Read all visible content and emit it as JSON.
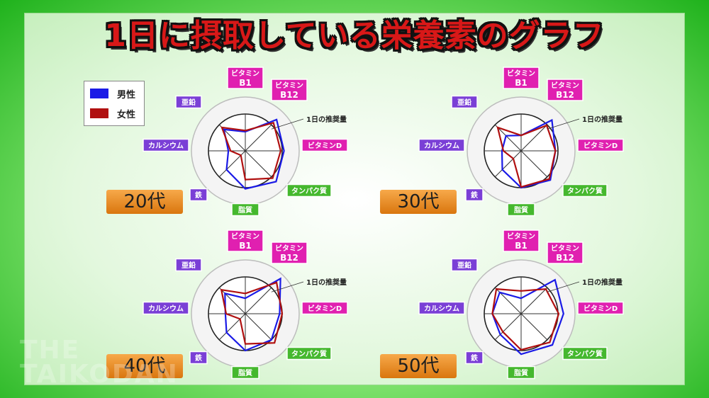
{
  "title": "1日に摂取している栄養素のグラフ",
  "watermark": [
    "THE",
    "TAIKODAN"
  ],
  "legend": {
    "male": {
      "label": "男性",
      "color": "#1a1ae6"
    },
    "female": {
      "label": "女性",
      "color": "#b01010"
    }
  },
  "axes": [
    {
      "lines": [
        "ビタミン",
        "B1"
      ],
      "group": "vitamin",
      "color": "#e020b0"
    },
    {
      "lines": [
        "ビタミン",
        "B12"
      ],
      "group": "vitamin",
      "color": "#e020b0"
    },
    {
      "lines": [
        "ビタミンD"
      ],
      "group": "vitamin",
      "color": "#e020b0"
    },
    {
      "lines": [
        "タンパク質"
      ],
      "group": "macro",
      "color": "#45b82e"
    },
    {
      "lines": [
        "脂質"
      ],
      "group": "macro",
      "color": "#45b82e"
    },
    {
      "lines": [
        "鉄"
      ],
      "group": "mineral",
      "color": "#7a3fd6"
    },
    {
      "lines": [
        "カルシウム"
      ],
      "group": "mineral",
      "color": "#7a3fd6"
    },
    {
      "lines": [
        "亜鉛"
      ],
      "group": "mineral",
      "color": "#7a3fd6"
    }
  ],
  "reference_label": "1日の推奨量",
  "chart_data": [
    {
      "type": "radar",
      "label": "20代",
      "reference": 1.0,
      "series": [
        {
          "name": "男性",
          "values": [
            0.52,
            1.2,
            1.05,
            1.18,
            1.03,
            0.72,
            0.46,
            0.82
          ]
        },
        {
          "name": "女性",
          "values": [
            0.55,
            1.08,
            0.96,
            1.05,
            0.78,
            0.17,
            0.4,
            0.9
          ]
        }
      ]
    },
    {
      "type": "radar",
      "label": "30代",
      "reference": 1.0,
      "series": [
        {
          "name": "男性",
          "values": [
            0.42,
            1.18,
            0.93,
            1.12,
            1.0,
            0.72,
            0.52,
            0.58
          ]
        },
        {
          "name": "女性",
          "values": [
            0.42,
            0.98,
            0.93,
            1.08,
            0.98,
            0.3,
            0.48,
            0.9
          ]
        }
      ]
    },
    {
      "type": "radar",
      "label": "40代",
      "reference": 1.0,
      "series": [
        {
          "name": "男性",
          "values": [
            0.42,
            1.35,
            0.93,
            1.0,
            1.0,
            0.72,
            0.54,
            0.78
          ]
        },
        {
          "name": "女性",
          "values": [
            0.55,
            1.2,
            1.0,
            1.12,
            0.82,
            0.2,
            0.52,
            0.92
          ]
        }
      ]
    },
    {
      "type": "radar",
      "label": "50代",
      "reference": 1.0,
      "series": [
        {
          "name": "男性",
          "values": [
            0.42,
            1.3,
            1.15,
            1.2,
            1.1,
            0.8,
            0.78,
            0.82
          ]
        },
        {
          "name": "女性",
          "values": [
            0.62,
            0.95,
            1.02,
            1.1,
            0.98,
            0.7,
            0.78,
            0.95
          ]
        }
      ]
    }
  ]
}
